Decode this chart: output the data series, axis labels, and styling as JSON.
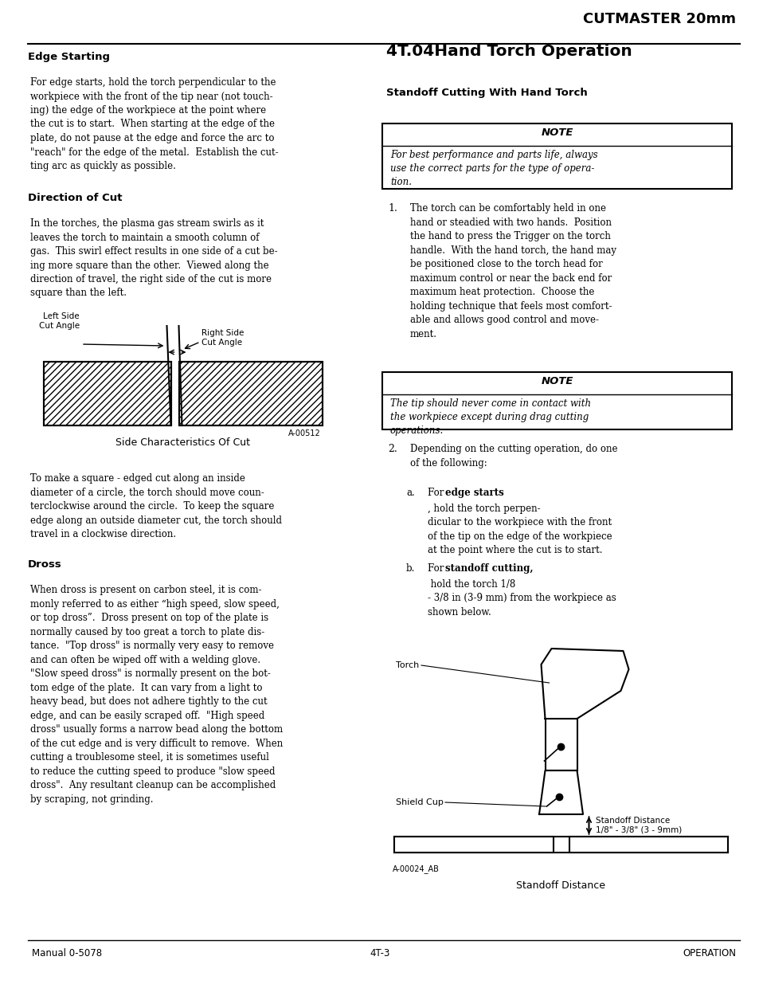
{
  "page_width": 9.54,
  "page_height": 12.35,
  "bg_color": "#ffffff",
  "header_title": "CUTMASTER 20mm",
  "footer_text_left": "Manual 0-5078",
  "footer_text_center": "4T-3",
  "footer_text_right": "OPERATION"
}
